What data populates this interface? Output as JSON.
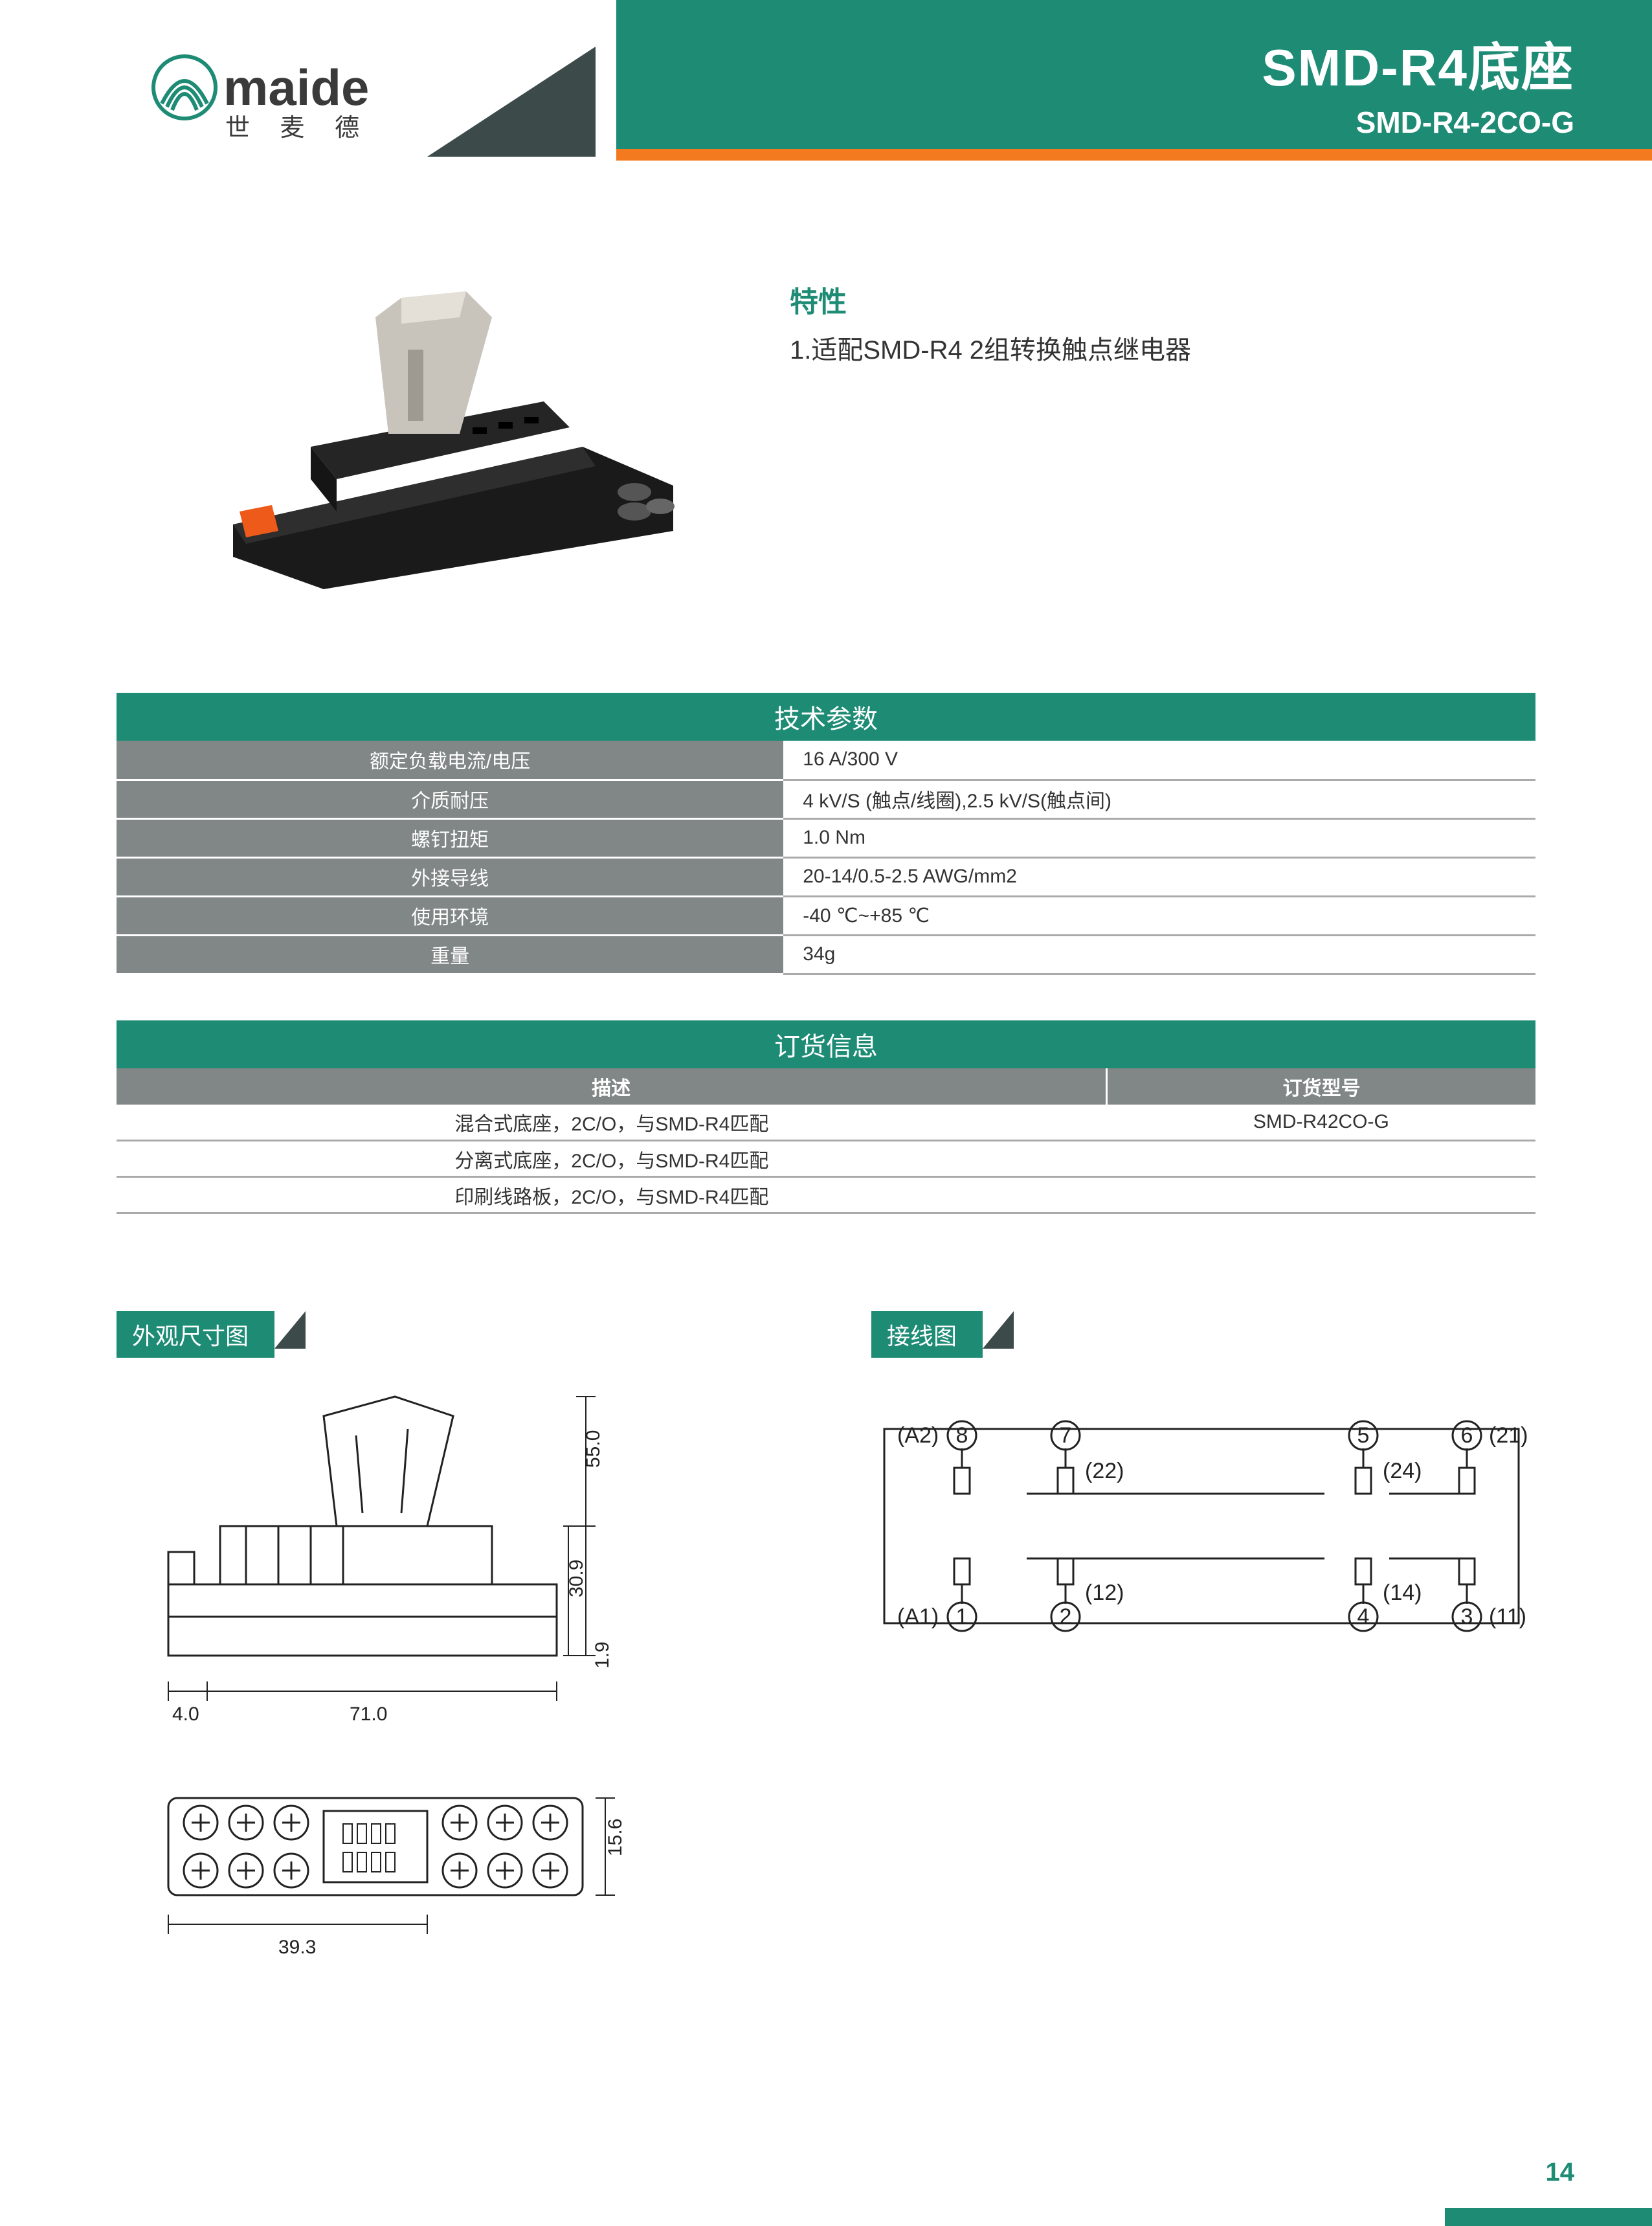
{
  "brand": {
    "name_en": "maide",
    "name_cn": "世 麦 德",
    "logo_colors": {
      "swirl": "#1e8b75",
      "text": "#3a3a3a"
    }
  },
  "header": {
    "title_main": "SMD-R4底座",
    "title_sub": "SMD-R4-2CO-G",
    "bg_color": "#1e8b75",
    "accent_color": "#f47a1f"
  },
  "features": {
    "heading": "特性",
    "items": [
      "1.适配SMD-R4 2组转换触点继电器"
    ]
  },
  "tech_spec": {
    "title": "技术参数",
    "rows": [
      {
        "label": "额定负载电流/电压",
        "value": "16 A/300 V"
      },
      {
        "label": "介质耐压",
        "value": "4 kV/S (触点/线圈),2.5 kV/S(触点间)"
      },
      {
        "label": "螺钉扭矩",
        "value": "1.0 Nm"
      },
      {
        "label": "外接导线",
        "value": "20-14/0.5-2.5 AWG/mm2"
      },
      {
        "label": "使用环境",
        "value": "-40 ℃~+85 ℃"
      },
      {
        "label": "重量",
        "value": "34g"
      }
    ]
  },
  "order_info": {
    "title": "订货信息",
    "columns": [
      "描述",
      "订货型号"
    ],
    "rows": [
      [
        "混合式底座，2C/O，与SMD-R4匹配",
        "SMD-R42CO-G"
      ],
      [
        "分离式底座，2C/O，与SMD-R4匹配",
        ""
      ],
      [
        "印刷线路板，2C/O，与SMD-R4匹配",
        ""
      ]
    ]
  },
  "diagram_labels": {
    "dimensions": "外观尺寸图",
    "wiring": "接线图"
  },
  "dimensions": {
    "side": {
      "width": "71.0",
      "left_offset": "4.0",
      "height": "55.0",
      "mid_h": "30.9",
      "bot_h": "1.9"
    },
    "top": {
      "width": "39.3",
      "height": "15.6"
    }
  },
  "wiring": {
    "top_row": {
      "terminals": [
        "8",
        "7",
        "5",
        "6"
      ],
      "inner_labels": [
        "(A2)",
        "(22)",
        "(24)",
        "(21)"
      ]
    },
    "bottom_row": {
      "terminals": [
        "1",
        "2",
        "4",
        "3"
      ],
      "inner_labels": [
        "(A1)",
        "(12)",
        "(14)",
        "(11)"
      ]
    }
  },
  "page_number": "14",
  "colors": {
    "section_bg": "#1e8b75",
    "row_label_bg": "#808786",
    "text": "#333333",
    "border": "#aaaaaa"
  }
}
